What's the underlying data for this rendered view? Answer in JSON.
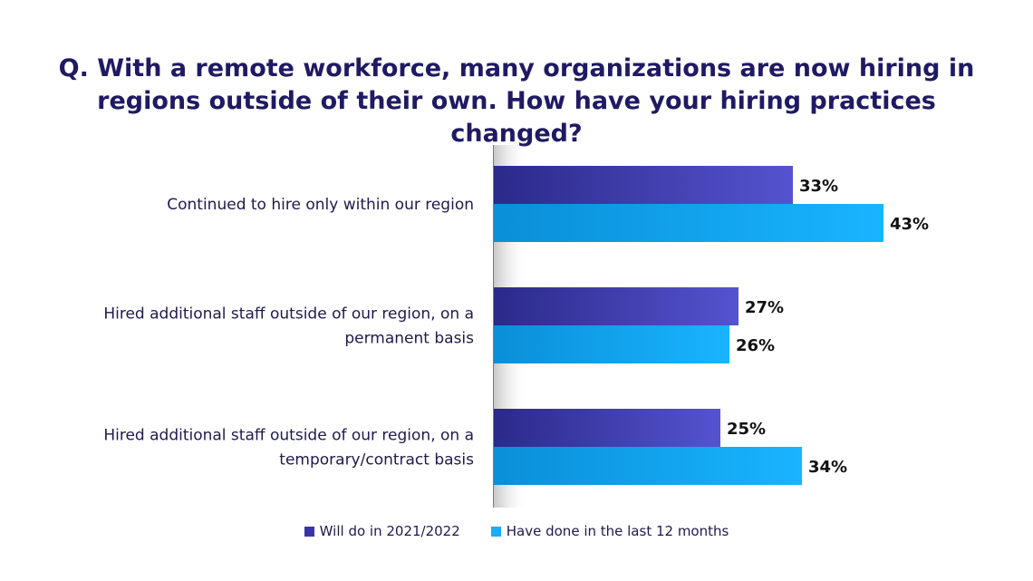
{
  "title_lines": [
    "Q. With a remote workforce, many organizations are now hiring in",
    "regions outside of their own. How have your hiring practices changed?"
  ],
  "colors": {
    "series1_start": "#2b2a8a",
    "series1_end": "#5553cf",
    "series2_start": "#0a8fd8",
    "series2_end": "#19b4ff",
    "swatch1": "#3b33a8",
    "swatch2": "#19aef5"
  },
  "chart_data": {
    "type": "bar",
    "orientation": "horizontal",
    "categories": [
      [
        "Continued to hire only within our region"
      ],
      [
        "Hired additional staff outside of our region, on a",
        "permanent basis"
      ],
      [
        "Hired additional staff outside of our region, on a",
        "temporary/contract basis"
      ]
    ],
    "series": [
      {
        "name": "Will do in 2021/2022",
        "values": [
          33,
          27,
          25
        ],
        "labels": [
          "33%",
          "27%",
          "25%"
        ]
      },
      {
        "name": "Have done in the last 12 months",
        "values": [
          43,
          26,
          34
        ],
        "labels": [
          "43%",
          "26%",
          "34%"
        ]
      }
    ],
    "xlim": [
      0,
      100
    ],
    "grid": false,
    "legend": "bottom"
  }
}
